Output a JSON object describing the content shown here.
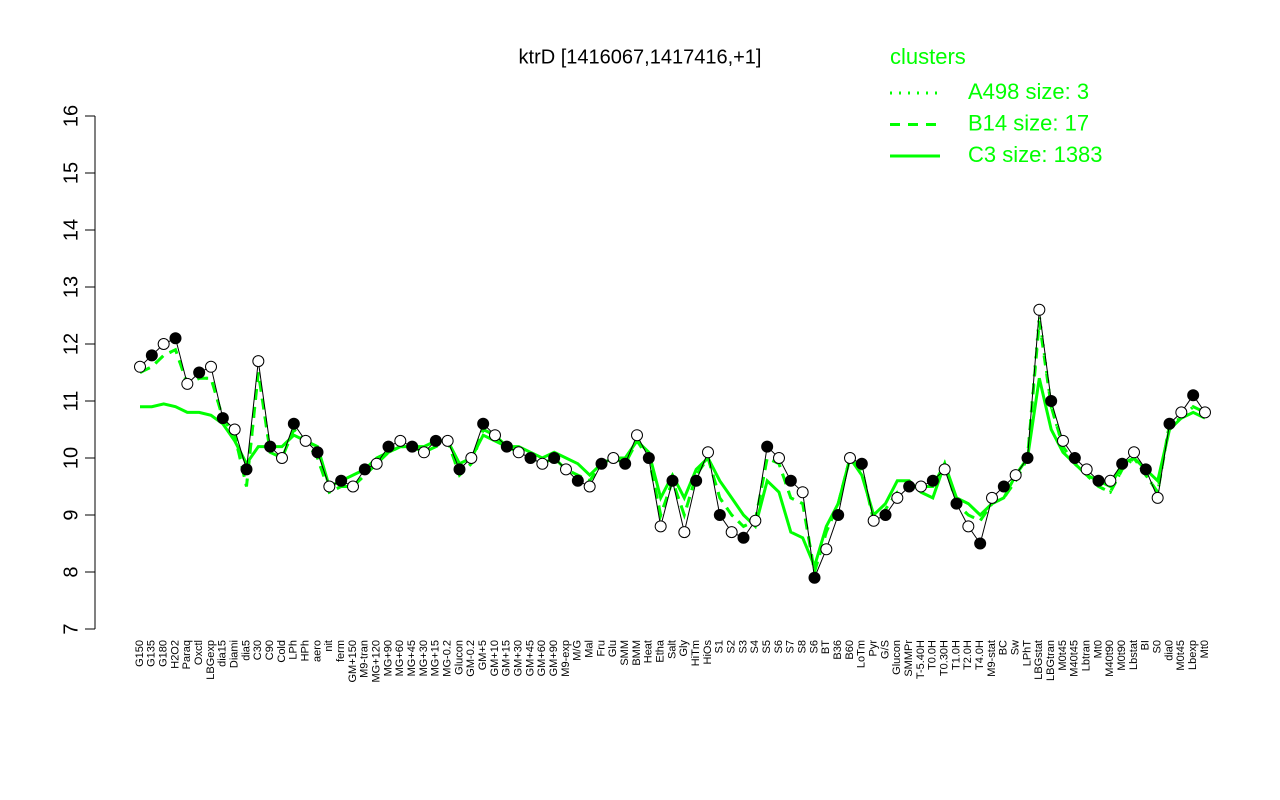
{
  "chart_data": {
    "type": "line",
    "title": "ktrD [1416067,1417416,+1]",
    "legend_title": "clusters",
    "legend_position": "top-right",
    "point_color": "#000000",
    "ylim": [
      7,
      16
    ],
    "yticks": [
      7,
      8,
      9,
      10,
      11,
      12,
      13,
      14,
      15,
      16
    ],
    "categories": [
      "G150",
      "G135",
      "G180",
      "H2O2",
      "Paraq",
      "Oxctl",
      "LBGexp",
      "dia15",
      "Diami",
      "dia5",
      "C30",
      "C90",
      "Cold",
      "LPh",
      "HPh",
      "aero",
      "nit",
      "ferm",
      "GM+150",
      "M9-tran",
      "MG+120",
      "MG+90",
      "MG+60",
      "MG+45",
      "MG+30",
      "MG+15",
      "MG-0.2",
      "Glucon",
      "GM-0.2",
      "GM+5",
      "GM+10",
      "GM+15",
      "GM+30",
      "GM+45",
      "GM+60",
      "GM+90",
      "M9-exp",
      "M/G",
      "Mal",
      "Fru",
      "Glu",
      "SMM",
      "BMM",
      "Heat",
      "Etha",
      "Salt",
      "Gly",
      "HiTm",
      "HiOs",
      "S1",
      "S2",
      "S3",
      "S4",
      "S5",
      "S6",
      "S7",
      "S8",
      "S6",
      "BT",
      "B36",
      "B60",
      "LoTm",
      "Pyr",
      "G/S",
      "Glucon",
      "SMMPr",
      "T-5.40H",
      "T0.0H",
      "T0.30H",
      "T1.0H",
      "T2.0H",
      "T4.0H",
      "M9-stat",
      "BC",
      "Sw",
      "LPhT",
      "LBGstat",
      "LBGtran",
      "M0t45",
      "M40t45",
      "Lbtran",
      "Mt0",
      "M40t90",
      "M0t90",
      "Lbstat",
      "BI",
      "S0",
      "dia0",
      "M0t45",
      "Lbexp",
      "Mt0"
    ],
    "values": [
      11.6,
      11.8,
      12.0,
      12.1,
      11.3,
      11.5,
      11.6,
      10.7,
      10.5,
      9.8,
      11.7,
      10.2,
      10.0,
      10.6,
      10.3,
      10.1,
      9.5,
      9.6,
      9.5,
      9.8,
      9.9,
      10.2,
      10.3,
      10.2,
      10.1,
      10.3,
      10.3,
      9.8,
      10.0,
      10.6,
      10.4,
      10.2,
      10.1,
      10.0,
      9.9,
      10.0,
      9.8,
      9.6,
      9.5,
      9.9,
      10.0,
      9.9,
      10.4,
      10.0,
      8.8,
      9.6,
      8.7,
      9.6,
      10.1,
      9.0,
      8.7,
      8.6,
      8.9,
      10.2,
      10.0,
      9.6,
      9.4,
      7.9,
      8.4,
      9.0,
      10.0,
      9.9,
      8.9,
      9.0,
      9.3,
      9.5,
      9.5,
      9.6,
      9.8,
      9.2,
      8.8,
      8.5,
      9.3,
      9.5,
      9.7,
      10.0,
      12.6,
      11.0,
      10.3,
      10.0,
      9.8,
      9.6,
      9.6,
      9.9,
      10.1,
      9.8,
      9.3,
      10.6,
      10.8,
      11.1,
      10.8
    ],
    "series": [
      {
        "name": "A498 size: 3",
        "color": "#00ff00",
        "dash": "dotted",
        "values": [
          11.5,
          11.6,
          11.8,
          11.9,
          11.3,
          11.4,
          11.4,
          10.7,
          10.4,
          9.5,
          11.5,
          10.1,
          10.0,
          10.5,
          10.3,
          10.0,
          9.4,
          9.5,
          9.5,
          9.7,
          9.9,
          10.1,
          10.2,
          10.2,
          10.1,
          10.2,
          10.3,
          9.7,
          9.9,
          10.5,
          10.4,
          10.2,
          10.1,
          10.0,
          9.9,
          10.0,
          9.8,
          9.7,
          9.6,
          9.9,
          10.0,
          9.9,
          10.3,
          10.0,
          9.0,
          9.6,
          9.0,
          9.7,
          10.0,
          9.3,
          9.0,
          8.8,
          8.9,
          10.0,
          9.9,
          9.3,
          9.2,
          8.0,
          8.7,
          9.2,
          10.0,
          9.8,
          8.9,
          9.1,
          9.4,
          9.5,
          9.5,
          9.5,
          9.9,
          9.2,
          9.0,
          8.9,
          9.2,
          9.3,
          9.6,
          10.0,
          12.5,
          10.9,
          10.2,
          9.9,
          9.7,
          9.5,
          9.4,
          9.8,
          10.0,
          9.7,
          9.4,
          10.6,
          10.7,
          10.9,
          10.8
        ]
      },
      {
        "name": "B14 size: 17",
        "color": "#00ff00",
        "dash": "dashed",
        "values": [
          11.5,
          11.6,
          11.8,
          11.9,
          11.3,
          11.4,
          11.4,
          10.7,
          10.4,
          9.5,
          11.5,
          10.1,
          10.0,
          10.5,
          10.3,
          10.0,
          9.4,
          9.5,
          9.5,
          9.7,
          9.9,
          10.1,
          10.2,
          10.2,
          10.1,
          10.2,
          10.3,
          9.7,
          9.9,
          10.5,
          10.4,
          10.2,
          10.1,
          10.0,
          9.9,
          10.0,
          9.8,
          9.7,
          9.6,
          9.9,
          10.0,
          9.9,
          10.3,
          10.0,
          9.0,
          9.6,
          9.0,
          9.7,
          10.0,
          9.3,
          9.0,
          8.8,
          8.9,
          10.0,
          9.9,
          9.3,
          9.2,
          8.0,
          8.7,
          9.2,
          10.0,
          9.8,
          8.9,
          9.1,
          9.4,
          9.5,
          9.5,
          9.5,
          9.9,
          9.2,
          9.0,
          8.9,
          9.2,
          9.3,
          9.6,
          10.0,
          12.4,
          10.9,
          10.2,
          9.9,
          9.7,
          9.5,
          9.4,
          9.8,
          10.0,
          9.7,
          9.4,
          10.6,
          10.7,
          10.9,
          10.8
        ]
      },
      {
        "name": "C3 size: 1383",
        "color": "#00ff00",
        "dash": "solid",
        "values": [
          10.9,
          10.9,
          10.95,
          10.9,
          10.8,
          10.8,
          10.75,
          10.6,
          10.3,
          9.9,
          10.2,
          10.2,
          10.2,
          10.4,
          10.3,
          10.2,
          9.5,
          9.6,
          9.7,
          9.8,
          10.0,
          10.1,
          10.2,
          10.2,
          10.2,
          10.3,
          10.3,
          9.9,
          10.0,
          10.4,
          10.3,
          10.2,
          10.2,
          10.1,
          10.0,
          10.1,
          10.0,
          9.9,
          9.7,
          9.9,
          10.0,
          10.0,
          10.3,
          10.1,
          9.3,
          9.7,
          9.3,
          9.8,
          10.0,
          9.6,
          9.3,
          9.0,
          8.8,
          9.6,
          9.4,
          8.7,
          8.6,
          8.1,
          8.8,
          9.2,
          10.0,
          9.7,
          9.0,
          9.2,
          9.6,
          9.6,
          9.4,
          9.3,
          9.9,
          9.3,
          9.2,
          9.0,
          9.2,
          9.3,
          9.7,
          10.0,
          11.4,
          10.5,
          10.1,
          9.9,
          9.7,
          9.6,
          9.5,
          9.9,
          10.0,
          9.8,
          9.6,
          10.5,
          10.7,
          10.8,
          10.7
        ]
      }
    ]
  }
}
